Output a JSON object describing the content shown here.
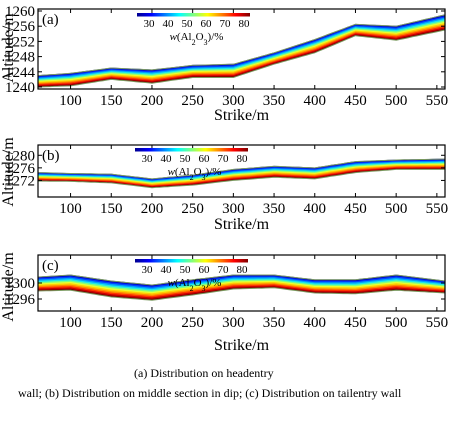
{
  "chart_data": [
    {
      "type": "heatmap",
      "panel_label": "(a)",
      "xlabel": "Strike/m",
      "ylabel": "Altitude/m",
      "xlim": [
        60,
        560
      ],
      "ylim": [
        1240,
        1260
      ],
      "xticks": [
        100,
        150,
        200,
        250,
        300,
        350,
        400,
        450,
        500,
        550
      ],
      "yticks": [
        1240,
        1244,
        1248,
        1252,
        1256,
        1260
      ],
      "colorbar": {
        "label": "w(Al2O3)/%",
        "ticks": [
          30,
          40,
          50,
          60,
          70,
          80
        ]
      },
      "band_x": [
        60,
        100,
        150,
        200,
        250,
        300,
        350,
        400,
        450,
        500,
        560
      ],
      "band_bottom": [
        1240,
        1240.3,
        1242,
        1241,
        1242.5,
        1242.5,
        1246,
        1249,
        1253.5,
        1252.3,
        1255
      ],
      "band_top": [
        1243,
        1243.6,
        1245,
        1244.5,
        1245.7,
        1246,
        1249,
        1252.5,
        1256.5,
        1256,
        1259
      ]
    },
    {
      "type": "heatmap",
      "panel_label": "(b)",
      "xlabel": "Strike/m",
      "ylabel": "Altitude/m",
      "xlim": [
        60,
        560
      ],
      "ylim": [
        1268,
        1282
      ],
      "xticks": [
        100,
        150,
        200,
        250,
        300,
        350,
        400,
        450,
        500,
        550
      ],
      "yticks": [
        1272,
        1276,
        1280
      ],
      "colorbar": {
        "label": "w(Al2O3)/%",
        "ticks": [
          30,
          40,
          50,
          60,
          70,
          80
        ]
      },
      "band_x": [
        60,
        100,
        150,
        200,
        250,
        300,
        350,
        400,
        450,
        500,
        560
      ],
      "band_bottom": [
        1271.8,
        1271.7,
        1271.2,
        1269.7,
        1270.5,
        1272,
        1273,
        1272.5,
        1274.5,
        1275.5,
        1275.5
      ],
      "band_top": [
        1274.5,
        1274.2,
        1274,
        1272.5,
        1273.7,
        1275.5,
        1276.5,
        1276,
        1278,
        1278.5,
        1278.8
      ]
    },
    {
      "type": "heatmap",
      "panel_label": "(c)",
      "xlabel": "Strike/m",
      "ylabel": "Altitude/m",
      "xlim": [
        60,
        560
      ],
      "ylim": [
        1294,
        1306
      ],
      "xticks": [
        100,
        150,
        200,
        250,
        300,
        350,
        400,
        450,
        500,
        550
      ],
      "yticks": [
        1296,
        1300
      ],
      "colorbar": {
        "label": "w(Al2O3)/%",
        "ticks": [
          30,
          40,
          50,
          60,
          70,
          80
        ]
      },
      "band_x": [
        60,
        100,
        150,
        200,
        250,
        300,
        350,
        400,
        450,
        500,
        560
      ],
      "band_bottom": [
        1298,
        1298.2,
        1296.5,
        1295.7,
        1297,
        1298.5,
        1298.8,
        1297.5,
        1297.3,
        1298.2,
        1297.5
      ],
      "band_top": [
        1301.5,
        1302,
        1300.5,
        1299.5,
        1300.8,
        1302,
        1302,
        1300.8,
        1300.8,
        1302,
        1300.5
      ]
    }
  ],
  "caption": {
    "line1": "(a)  Distribution  on  headentry",
    "line2": "wall; (b) Distribution on middle section in dip; (c) Distribution on tailentry wall"
  }
}
